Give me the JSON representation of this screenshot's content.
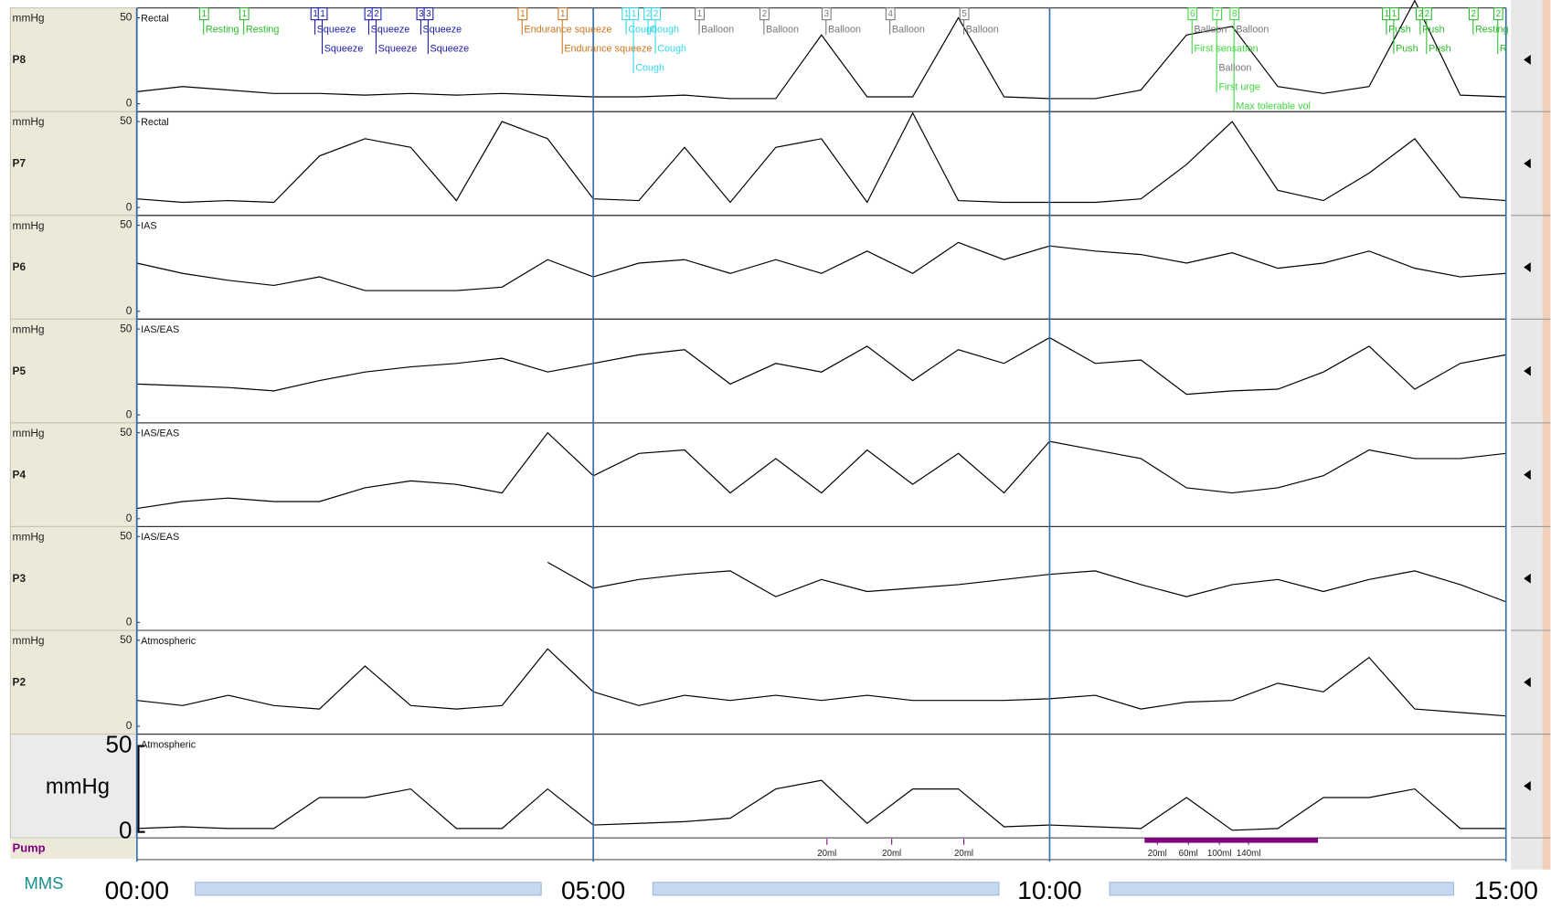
{
  "trace_times": [
    0,
    0.5,
    1,
    1.5,
    2,
    2.5,
    3,
    3.5,
    4,
    4.5,
    5,
    5.5,
    6,
    6.5,
    7,
    7.5,
    8,
    8.5,
    9,
    9.5,
    10,
    10.5,
    11,
    11.5,
    12,
    12.5,
    13,
    13.5,
    14,
    14.5,
    15
  ],
  "time_axis": {
    "xlim": [
      0,
      15
    ],
    "ticks": [
      {
        "value": 0,
        "label": "00:00"
      },
      {
        "value": 5,
        "label": "05:00"
      },
      {
        "value": 10,
        "label": "10:00"
      },
      {
        "value": 15,
        "label": "15:00"
      }
    ]
  },
  "channels": [
    {
      "name": "P8",
      "unit": "mmHg",
      "site": "Rectal",
      "ylim": [
        0,
        50
      ],
      "yticks": [
        0,
        50
      ],
      "values": [
        7,
        10,
        8,
        6,
        6,
        5,
        6,
        5,
        6,
        5,
        4,
        4,
        5,
        3,
        3,
        40,
        4,
        4,
        50,
        4,
        3,
        3,
        8,
        40,
        45,
        10,
        6,
        10,
        60,
        5,
        4
      ]
    },
    {
      "name": "P7",
      "unit": "mmHg",
      "site": "Rectal",
      "ylim": [
        0,
        50
      ],
      "yticks": [
        0,
        50
      ],
      "values": [
        5,
        3,
        4,
        3,
        30,
        40,
        35,
        4,
        50,
        40,
        5,
        4,
        35,
        3,
        35,
        40,
        3,
        55,
        4,
        3,
        3,
        3,
        5,
        25,
        50,
        10,
        4,
        20,
        40,
        6,
        4
      ]
    },
    {
      "name": "P6",
      "unit": "mmHg",
      "site": "IAS",
      "ylim": [
        0,
        50
      ],
      "yticks": [
        0,
        50
      ],
      "values": [
        28,
        22,
        18,
        15,
        20,
        12,
        12,
        12,
        14,
        30,
        20,
        28,
        30,
        22,
        30,
        22,
        35,
        22,
        40,
        30,
        38,
        35,
        33,
        28,
        34,
        25,
        28,
        35,
        25,
        20,
        22
      ]
    },
    {
      "name": "P5",
      "unit": "mmHg",
      "site": "IAS/EAS",
      "ylim": [
        0,
        50
      ],
      "yticks": [
        0,
        50
      ],
      "values": [
        18,
        17,
        16,
        14,
        20,
        25,
        28,
        30,
        33,
        25,
        30,
        35,
        38,
        18,
        30,
        25,
        40,
        20,
        38,
        30,
        45,
        30,
        32,
        12,
        14,
        15,
        25,
        40,
        15,
        30,
        35
      ]
    },
    {
      "name": "P4",
      "unit": "mmHg",
      "site": "IAS/EAS",
      "ylim": [
        0,
        50
      ],
      "yticks": [
        0,
        50
      ],
      "values": [
        6,
        10,
        12,
        10,
        10,
        18,
        22,
        20,
        15,
        50,
        25,
        38,
        40,
        15,
        35,
        15,
        40,
        20,
        38,
        15,
        45,
        40,
        35,
        18,
        15,
        18,
        25,
        40,
        35,
        35,
        38
      ]
    },
    {
      "name": "P3",
      "unit": "mmHg",
      "site": "IAS/EAS",
      "ylim": [
        0,
        50
      ],
      "yticks": [
        0,
        50
      ],
      "values": [
        null,
        null,
        null,
        null,
        null,
        null,
        null,
        null,
        null,
        35,
        20,
        25,
        28,
        30,
        15,
        25,
        18,
        20,
        22,
        25,
        28,
        30,
        22,
        15,
        22,
        25,
        18,
        25,
        30,
        22,
        12
      ]
    },
    {
      "name": "P2",
      "unit": "mmHg",
      "site": "Atmospheric",
      "ylim": [
        0,
        50
      ],
      "yticks": [
        0,
        50
      ],
      "values": [
        15,
        12,
        18,
        12,
        10,
        35,
        12,
        10,
        12,
        45,
        20,
        12,
        18,
        15,
        18,
        15,
        18,
        15,
        15,
        15,
        16,
        18,
        10,
        14,
        15,
        25,
        20,
        40,
        10,
        8,
        6
      ]
    },
    {
      "name": null,
      "unit": "mmHg",
      "site": "Atmospheric",
      "ylim": [
        0,
        50
      ],
      "yticks": [
        0,
        50
      ],
      "values": [
        2,
        3,
        2,
        2,
        20,
        20,
        25,
        2,
        2,
        25,
        4,
        5,
        6,
        8,
        25,
        30,
        5,
        25,
        25,
        3,
        4,
        3,
        2,
        20,
        1,
        2,
        20,
        20,
        25,
        2,
        2
      ]
    }
  ],
  "events": [
    {
      "marker": "1",
      "t": 0.73,
      "label": "Resting",
      "row": 0,
      "color": "#2db92d"
    },
    {
      "marker": "1",
      "t": 1.17,
      "label": "Resting",
      "row": 0,
      "color": "#2db92d"
    },
    {
      "marker": "1",
      "t": 1.95,
      "label": "Squeeze",
      "row": 0,
      "color": "#1a1aa8"
    },
    {
      "marker": "1",
      "t": 2.03,
      "label": "Squeeze",
      "row": 1,
      "color": "#1a1aa8"
    },
    {
      "marker": "2",
      "t": 2.54,
      "label": "Squeeze",
      "row": 0,
      "color": "#1a1aa8"
    },
    {
      "marker": "2",
      "t": 2.62,
      "label": "Squeeze",
      "row": 1,
      "color": "#1a1aa8"
    },
    {
      "marker": "3",
      "t": 3.11,
      "label": "Squeeze",
      "row": 0,
      "color": "#1a1aa8"
    },
    {
      "marker": "3",
      "t": 3.19,
      "label": "Squeeze",
      "row": 1,
      "color": "#1a1aa8"
    },
    {
      "marker": "1",
      "t": 4.22,
      "label": "Endurance squeeze",
      "row": 0,
      "color": "#c8761e"
    },
    {
      "marker": "1",
      "t": 4.66,
      "label": "Endurance squeeze",
      "row": 1,
      "color": "#c8761e"
    },
    {
      "marker": "1",
      "t": 5.36,
      "label": "Cough",
      "row": 0,
      "color": "#33d6e8"
    },
    {
      "marker": "1",
      "t": 5.44,
      "label": "Cough",
      "row": 2,
      "color": "#33d6e8"
    },
    {
      "marker": "2",
      "t": 5.6,
      "label": "Cough",
      "row": 0,
      "color": "#33d6e8"
    },
    {
      "marker": "2",
      "t": 5.68,
      "label": "Cough",
      "row": 1,
      "color": "#33d6e8"
    },
    {
      "marker": "1",
      "t": 6.16,
      "label": "Balloon",
      "row": 0,
      "color": "#777777"
    },
    {
      "marker": "2",
      "t": 6.87,
      "label": "Balloon",
      "row": 0,
      "color": "#777777"
    },
    {
      "marker": "3",
      "t": 7.55,
      "label": "Balloon",
      "row": 0,
      "color": "#777777"
    },
    {
      "marker": "4",
      "t": 8.25,
      "label": "Balloon",
      "row": 0,
      "color": "#777777"
    },
    {
      "marker": "5",
      "t": 9.06,
      "label": "Balloon",
      "row": 0,
      "color": "#777777"
    },
    {
      "marker": "6",
      "t": 11.56,
      "label": "First sensation",
      "row": 1,
      "color": "#3fd63f"
    },
    {
      "marker": "7",
      "t": 11.83,
      "label": "First urge",
      "row": 3,
      "color": "#3fd63f"
    },
    {
      "marker": "8",
      "t": 12.02,
      "label": "Max tolerable vol",
      "row": 4,
      "color": "#3fd63f"
    },
    {
      "marker": null,
      "t": 11.56,
      "label": "Balloon",
      "row": 0,
      "color": "#777777"
    },
    {
      "marker": null,
      "t": 11.83,
      "label": "Balloon",
      "row": 2,
      "color": "#777777"
    },
    {
      "marker": null,
      "t": 12.02,
      "label": "Balloon",
      "row": 0,
      "color": "#777777"
    },
    {
      "marker": "1",
      "t": 13.69,
      "label": "Push",
      "row": 0,
      "color": "#2db92d"
    },
    {
      "marker": "1",
      "t": 13.77,
      "label": "Push",
      "row": 1,
      "color": "#2db92d"
    },
    {
      "marker": "2",
      "t": 14.06,
      "label": "Push",
      "row": 0,
      "color": "#2db92d"
    },
    {
      "marker": "2",
      "t": 14.13,
      "label": "Push",
      "row": 1,
      "color": "#2db92d"
    },
    {
      "marker": "2",
      "t": 14.64,
      "label": "Resting",
      "row": 0,
      "color": "#2db92d"
    },
    {
      "marker": "2",
      "t": 14.91,
      "label": "R",
      "row": 1,
      "color": "#2db92d"
    }
  ],
  "pump": {
    "label": "Pump",
    "bar": [
      11.04,
      12.94
    ],
    "volumes": [
      {
        "label": "20ml",
        "t": 7.56
      },
      {
        "label": "20ml",
        "t": 8.27
      },
      {
        "label": "20ml",
        "t": 9.06
      },
      {
        "label": "20ml",
        "t": 11.18
      },
      {
        "label": "60ml",
        "t": 11.52
      },
      {
        "label": "100ml",
        "t": 11.86
      },
      {
        "label": "140ml",
        "t": 12.18
      }
    ]
  },
  "logo": "MMS"
}
